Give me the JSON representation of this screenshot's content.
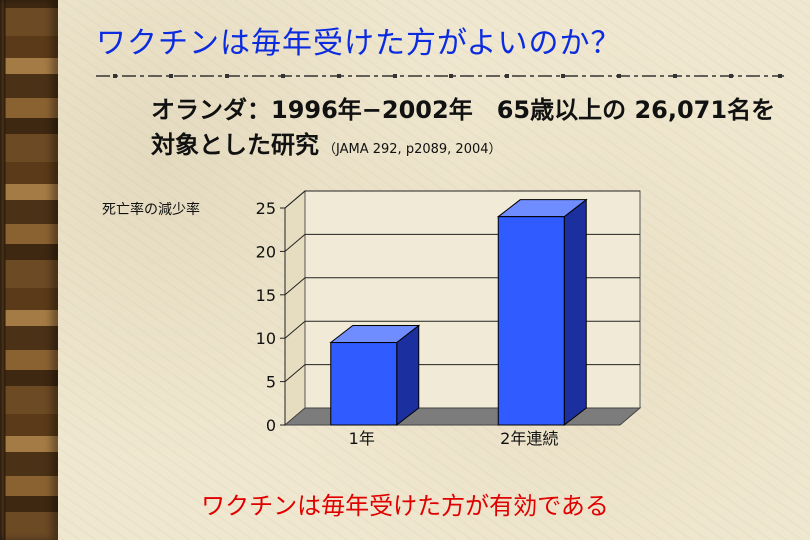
{
  "slide": {
    "title": "ワクチンは毎年受けた方がよいのか？",
    "subtitle_line1": "オランダ：1996年−2002年　65歳以上の 26,071名を",
    "subtitle_line2": "対象とした研究",
    "citation": "（JAMA 292, p2089, 2004）",
    "conclusion": "ワクチンは毎年受けた方が有効である"
  },
  "colors": {
    "title": "#0a2be0",
    "conclusion": "#e00000",
    "bar_front": "#2f5bff",
    "bar_side": "#1b2f9e",
    "bar_top": "#6f8dff"
  },
  "chart_data": {
    "type": "bar",
    "ylabel": "死亡率の減少率",
    "categories": [
      "1年",
      "2年連続"
    ],
    "values": [
      9.5,
      24
    ],
    "ylim": [
      0,
      25
    ],
    "yticks": [
      0,
      5,
      10,
      15,
      20,
      25
    ],
    "grid": true
  }
}
